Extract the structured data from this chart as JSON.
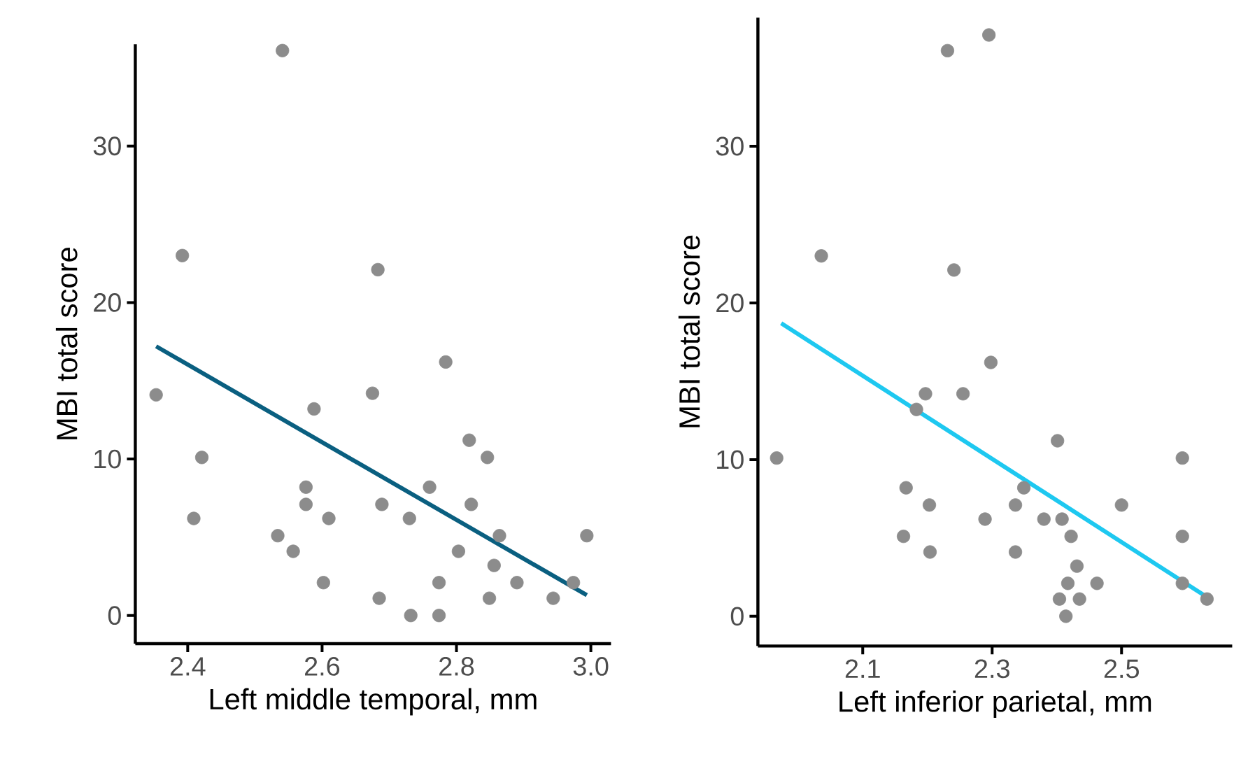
{
  "chart_data": [
    {
      "type": "scatter",
      "xlabel": "Left middle temporal, mm",
      "ylabel": "MBI total score",
      "xlim": [
        2.322,
        3.03
      ],
      "ylim": [
        -1.8,
        36.5
      ],
      "xticks": [
        2.4,
        2.6,
        2.8,
        {
          "value": 3.0,
          "label": "3.0"
        }
      ],
      "yticks": [
        0,
        10,
        20,
        30
      ],
      "series": [
        {
          "marker": "circle",
          "color": "#8c8c8c",
          "x": [
            2.541,
            2.392,
            2.683,
            2.353,
            2.784,
            2.675,
            2.588,
            2.819,
            2.421,
            2.846,
            2.576,
            2.76,
            2.576,
            2.689,
            2.822,
            2.409,
            2.61,
            2.73,
            2.534,
            2.864,
            2.994,
            2.557,
            2.803,
            2.856,
            2.602,
            2.774,
            2.89,
            2.974,
            2.685,
            2.849,
            2.944,
            2.732,
            2.774
          ],
          "values": [
            36.1,
            23.0,
            22.1,
            14.1,
            16.2,
            14.2,
            13.2,
            11.2,
            10.1,
            10.1,
            8.2,
            8.2,
            7.1,
            7.1,
            7.1,
            6.2,
            6.2,
            6.2,
            5.1,
            5.1,
            5.1,
            4.1,
            4.1,
            3.2,
            2.1,
            2.1,
            2.1,
            2.1,
            1.1,
            1.1,
            1.1,
            0,
            0
          ]
        },
        {
          "type": "line",
          "marker": "none",
          "color": "#0a5f80",
          "x": [
            2.353,
            2.994
          ],
          "values": [
            17.2,
            1.3
          ]
        }
      ]
    },
    {
      "type": "scatter",
      "xlabel": "Left inferior parietal, mm",
      "ylabel": "MBI total score",
      "xlim": [
        1.938,
        2.671
      ],
      "ylim": [
        -1.9,
        38.2
      ],
      "xticks": [
        2.1,
        2.3,
        2.5
      ],
      "yticks": [
        0,
        10,
        20,
        30
      ],
      "series": [
        {
          "marker": "circle",
          "color": "#8c8c8c",
          "x": [
            2.295,
            2.231,
            2.036,
            2.241,
            2.298,
            2.197,
            2.255,
            2.183,
            2.401,
            1.967,
            2.594,
            2.167,
            2.349,
            2.203,
            2.336,
            2.5,
            2.289,
            2.38,
            2.408,
            2.163,
            2.422,
            2.594,
            2.204,
            2.336,
            2.431,
            2.417,
            2.462,
            2.594,
            2.404,
            2.435,
            2.632,
            2.414
          ],
          "values": [
            37.1,
            36.1,
            23.0,
            22.1,
            16.2,
            14.2,
            14.2,
            13.2,
            11.2,
            10.1,
            10.1,
            8.2,
            8.2,
            7.1,
            7.1,
            7.1,
            6.2,
            6.2,
            6.2,
            5.1,
            5.1,
            5.1,
            4.1,
            4.1,
            3.2,
            2.1,
            2.1,
            2.1,
            1.1,
            1.1,
            1.1,
            0
          ]
        },
        {
          "type": "line",
          "marker": "none",
          "color": "#1ec8f0",
          "x": [
            1.974,
            2.633
          ],
          "values": [
            18.7,
            1.2
          ]
        }
      ]
    }
  ]
}
